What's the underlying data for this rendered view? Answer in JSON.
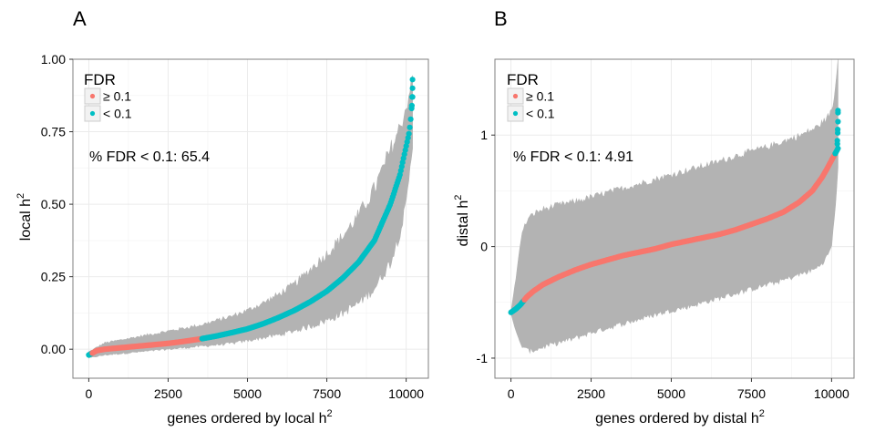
{
  "chart_data": [
    {
      "panel_label": "A",
      "type": "scatter",
      "xlabel": "genes ordered by local h",
      "xlabel_sup": "2",
      "ylabel": "local h",
      "ylabel_sup": "2",
      "xlim": [
        -500,
        10700
      ],
      "ylim": [
        -0.1,
        1.0
      ],
      "x_ticks": [
        0,
        2500,
        5000,
        7500,
        10000
      ],
      "x_tick_labels": [
        "0",
        "2500",
        "5000",
        "7500",
        "10000"
      ],
      "y_ticks": [
        0.0,
        0.25,
        0.5,
        0.75,
        1.0
      ],
      "y_tick_labels": [
        "0.00",
        "0.25",
        "0.50",
        "0.75",
        "1.00"
      ],
      "grid": true,
      "legend": {
        "title": "FDR",
        "position": "top-left",
        "entries": [
          {
            "label": "≥ 0.1",
            "color": "#f8766d"
          },
          {
            "label": "< 0.1",
            "color": "#00bfc4"
          }
        ]
      },
      "annotation": "% FDR < 0.1: 65.4",
      "n_genes": 10200,
      "curve": [
        {
          "x": 0,
          "y": -0.02
        },
        {
          "x": 250,
          "y": -0.005
        },
        {
          "x": 500,
          "y": 0.0
        },
        {
          "x": 1000,
          "y": 0.005
        },
        {
          "x": 1500,
          "y": 0.01
        },
        {
          "x": 2000,
          "y": 0.015
        },
        {
          "x": 2500,
          "y": 0.02
        },
        {
          "x": 3000,
          "y": 0.027
        },
        {
          "x": 3500,
          "y": 0.035
        },
        {
          "x": 4000,
          "y": 0.045
        },
        {
          "x": 4500,
          "y": 0.057
        },
        {
          "x": 5000,
          "y": 0.07
        },
        {
          "x": 5500,
          "y": 0.088
        },
        {
          "x": 6000,
          "y": 0.11
        },
        {
          "x": 6500,
          "y": 0.135
        },
        {
          "x": 7000,
          "y": 0.165
        },
        {
          "x": 7500,
          "y": 0.2
        },
        {
          "x": 8000,
          "y": 0.245
        },
        {
          "x": 8500,
          "y": 0.3
        },
        {
          "x": 9000,
          "y": 0.375
        },
        {
          "x": 9500,
          "y": 0.5
        },
        {
          "x": 9800,
          "y": 0.6
        },
        {
          "x": 10000,
          "y": 0.7
        },
        {
          "x": 10100,
          "y": 0.75
        },
        {
          "x": 10150,
          "y": 0.8
        },
        {
          "x": 10200,
          "y": 0.87
        }
      ],
      "error_band": [
        {
          "x": 0,
          "lo": -0.03,
          "hi": -0.01
        },
        {
          "x": 500,
          "lo": -0.02,
          "hi": 0.02
        },
        {
          "x": 1000,
          "lo": -0.015,
          "hi": 0.03
        },
        {
          "x": 1500,
          "lo": -0.01,
          "hi": 0.04
        },
        {
          "x": 2000,
          "lo": -0.005,
          "hi": 0.05
        },
        {
          "x": 2500,
          "lo": 0.0,
          "hi": 0.06
        },
        {
          "x": 3000,
          "lo": 0.005,
          "hi": 0.07
        },
        {
          "x": 3500,
          "lo": 0.01,
          "hi": 0.08
        },
        {
          "x": 4000,
          "lo": 0.015,
          "hi": 0.095
        },
        {
          "x": 4500,
          "lo": 0.02,
          "hi": 0.11
        },
        {
          "x": 5000,
          "lo": 0.03,
          "hi": 0.13
        },
        {
          "x": 5500,
          "lo": 0.04,
          "hi": 0.155
        },
        {
          "x": 6000,
          "lo": 0.05,
          "hi": 0.185
        },
        {
          "x": 6500,
          "lo": 0.065,
          "hi": 0.22
        },
        {
          "x": 7000,
          "lo": 0.08,
          "hi": 0.27
        },
        {
          "x": 7500,
          "lo": 0.1,
          "hi": 0.32
        },
        {
          "x": 8000,
          "lo": 0.125,
          "hi": 0.38
        },
        {
          "x": 8500,
          "lo": 0.16,
          "hi": 0.45
        },
        {
          "x": 9000,
          "lo": 0.21,
          "hi": 0.54
        },
        {
          "x": 9500,
          "lo": 0.3,
          "hi": 0.67
        },
        {
          "x": 9800,
          "lo": 0.4,
          "hi": 0.75
        },
        {
          "x": 10000,
          "lo": 0.5,
          "hi": 0.82
        },
        {
          "x": 10200,
          "lo": 0.7,
          "hi": 0.93
        }
      ],
      "fdr_segments": [
        {
          "from": 0,
          "to": 100,
          "class": "< 0.1"
        },
        {
          "from": 100,
          "to": 3550,
          "class": "≥ 0.1"
        },
        {
          "from": 3550,
          "to": 10200,
          "class": "< 0.1"
        }
      ],
      "top_points": [
        {
          "x": 10200,
          "y": 0.93
        },
        {
          "x": 10200,
          "y": 0.9
        },
        {
          "x": 10190,
          "y": 0.87
        },
        {
          "x": 10180,
          "y": 0.84
        }
      ]
    },
    {
      "panel_label": "B",
      "type": "scatter",
      "xlabel": "genes ordered by distal h",
      "xlabel_sup": "2",
      "ylabel": "distal h",
      "ylabel_sup": "2",
      "xlim": [
        -500,
        10700
      ],
      "ylim": [
        -1.18,
        1.68
      ],
      "x_ticks": [
        0,
        2500,
        5000,
        7500,
        10000
      ],
      "x_tick_labels": [
        "0",
        "2500",
        "5000",
        "7500",
        "10000"
      ],
      "y_ticks": [
        -1,
        0,
        1
      ],
      "y_tick_labels": [
        "-1",
        "0",
        "1"
      ],
      "grid": true,
      "legend": {
        "title": "FDR",
        "position": "top-left",
        "entries": [
          {
            "label": "≥ 0.1",
            "color": "#f8766d"
          },
          {
            "label": "< 0.1",
            "color": "#00bfc4"
          }
        ]
      },
      "annotation": "% FDR < 0.1: 4.91",
      "n_genes": 10200,
      "curve": [
        {
          "x": 0,
          "y": -0.59
        },
        {
          "x": 150,
          "y": -0.56
        },
        {
          "x": 300,
          "y": -0.52
        },
        {
          "x": 500,
          "y": -0.45
        },
        {
          "x": 700,
          "y": -0.4
        },
        {
          "x": 1000,
          "y": -0.34
        },
        {
          "x": 1500,
          "y": -0.27
        },
        {
          "x": 2000,
          "y": -0.21
        },
        {
          "x": 2500,
          "y": -0.16
        },
        {
          "x": 3000,
          "y": -0.12
        },
        {
          "x": 3500,
          "y": -0.08
        },
        {
          "x": 4000,
          "y": -0.05
        },
        {
          "x": 4500,
          "y": -0.02
        },
        {
          "x": 5000,
          "y": 0.02
        },
        {
          "x": 5500,
          "y": 0.05
        },
        {
          "x": 6000,
          "y": 0.08
        },
        {
          "x": 6500,
          "y": 0.11
        },
        {
          "x": 7000,
          "y": 0.15
        },
        {
          "x": 7500,
          "y": 0.2
        },
        {
          "x": 8000,
          "y": 0.25
        },
        {
          "x": 8500,
          "y": 0.31
        },
        {
          "x": 9000,
          "y": 0.4
        },
        {
          "x": 9400,
          "y": 0.5
        },
        {
          "x": 9700,
          "y": 0.62
        },
        {
          "x": 9900,
          "y": 0.72
        },
        {
          "x": 10050,
          "y": 0.8
        },
        {
          "x": 10200,
          "y": 0.88
        }
      ],
      "error_band": [
        {
          "x": 0,
          "lo": -0.6,
          "hi": -0.58
        },
        {
          "x": 100,
          "lo": -0.7,
          "hi": -0.4
        },
        {
          "x": 200,
          "lo": -0.8,
          "hi": -0.2
        },
        {
          "x": 300,
          "lo": -0.88,
          "hi": 0.05
        },
        {
          "x": 400,
          "lo": -0.9,
          "hi": 0.15
        },
        {
          "x": 500,
          "lo": -0.93,
          "hi": 0.22
        },
        {
          "x": 700,
          "lo": -0.93,
          "hi": 0.28
        },
        {
          "x": 1000,
          "lo": -0.9,
          "hi": 0.32
        },
        {
          "x": 1500,
          "lo": -0.86,
          "hi": 0.36
        },
        {
          "x": 2000,
          "lo": -0.82,
          "hi": 0.39
        },
        {
          "x": 2500,
          "lo": -0.77,
          "hi": 0.43
        },
        {
          "x": 3000,
          "lo": -0.73,
          "hi": 0.47
        },
        {
          "x": 3500,
          "lo": -0.69,
          "hi": 0.51
        },
        {
          "x": 4000,
          "lo": -0.65,
          "hi": 0.55
        },
        {
          "x": 4500,
          "lo": -0.61,
          "hi": 0.59
        },
        {
          "x": 5000,
          "lo": -0.57,
          "hi": 0.63
        },
        {
          "x": 5500,
          "lo": -0.54,
          "hi": 0.67
        },
        {
          "x": 6000,
          "lo": -0.5,
          "hi": 0.71
        },
        {
          "x": 6500,
          "lo": -0.46,
          "hi": 0.75
        },
        {
          "x": 7000,
          "lo": -0.42,
          "hi": 0.8
        },
        {
          "x": 7500,
          "lo": -0.38,
          "hi": 0.84
        },
        {
          "x": 8000,
          "lo": -0.34,
          "hi": 0.88
        },
        {
          "x": 8500,
          "lo": -0.3,
          "hi": 0.93
        },
        {
          "x": 9000,
          "lo": -0.25,
          "hi": 0.98
        },
        {
          "x": 9500,
          "lo": -0.2,
          "hi": 1.05
        },
        {
          "x": 9800,
          "lo": -0.12,
          "hi": 1.12
        },
        {
          "x": 10000,
          "lo": 0.0,
          "hi": 1.2
        },
        {
          "x": 10100,
          "lo": 0.3,
          "hi": 1.35
        },
        {
          "x": 10200,
          "lo": 0.7,
          "hi": 1.68
        }
      ],
      "fdr_segments": [
        {
          "from": 0,
          "to": 420,
          "class": "< 0.1"
        },
        {
          "from": 420,
          "to": 10100,
          "class": "≥ 0.1"
        },
        {
          "from": 10100,
          "to": 10200,
          "class": "< 0.1"
        }
      ],
      "top_points": [
        {
          "x": 10200,
          "y": 1.22
        },
        {
          "x": 10200,
          "y": 1.2
        },
        {
          "x": 10200,
          "y": 1.12
        },
        {
          "x": 10190,
          "y": 1.05
        },
        {
          "x": 10190,
          "y": 1.02
        },
        {
          "x": 10180,
          "y": 0.95
        },
        {
          "x": 10180,
          "y": 0.92
        }
      ]
    }
  ],
  "colors": {
    "fdr_high": "#f8766d",
    "fdr_low": "#00bfc4",
    "band": "#b3b3b3",
    "panel_border": "#7f7f7f",
    "grid_major": "#ebebeb",
    "grid_minor": "#f5f5f5"
  }
}
